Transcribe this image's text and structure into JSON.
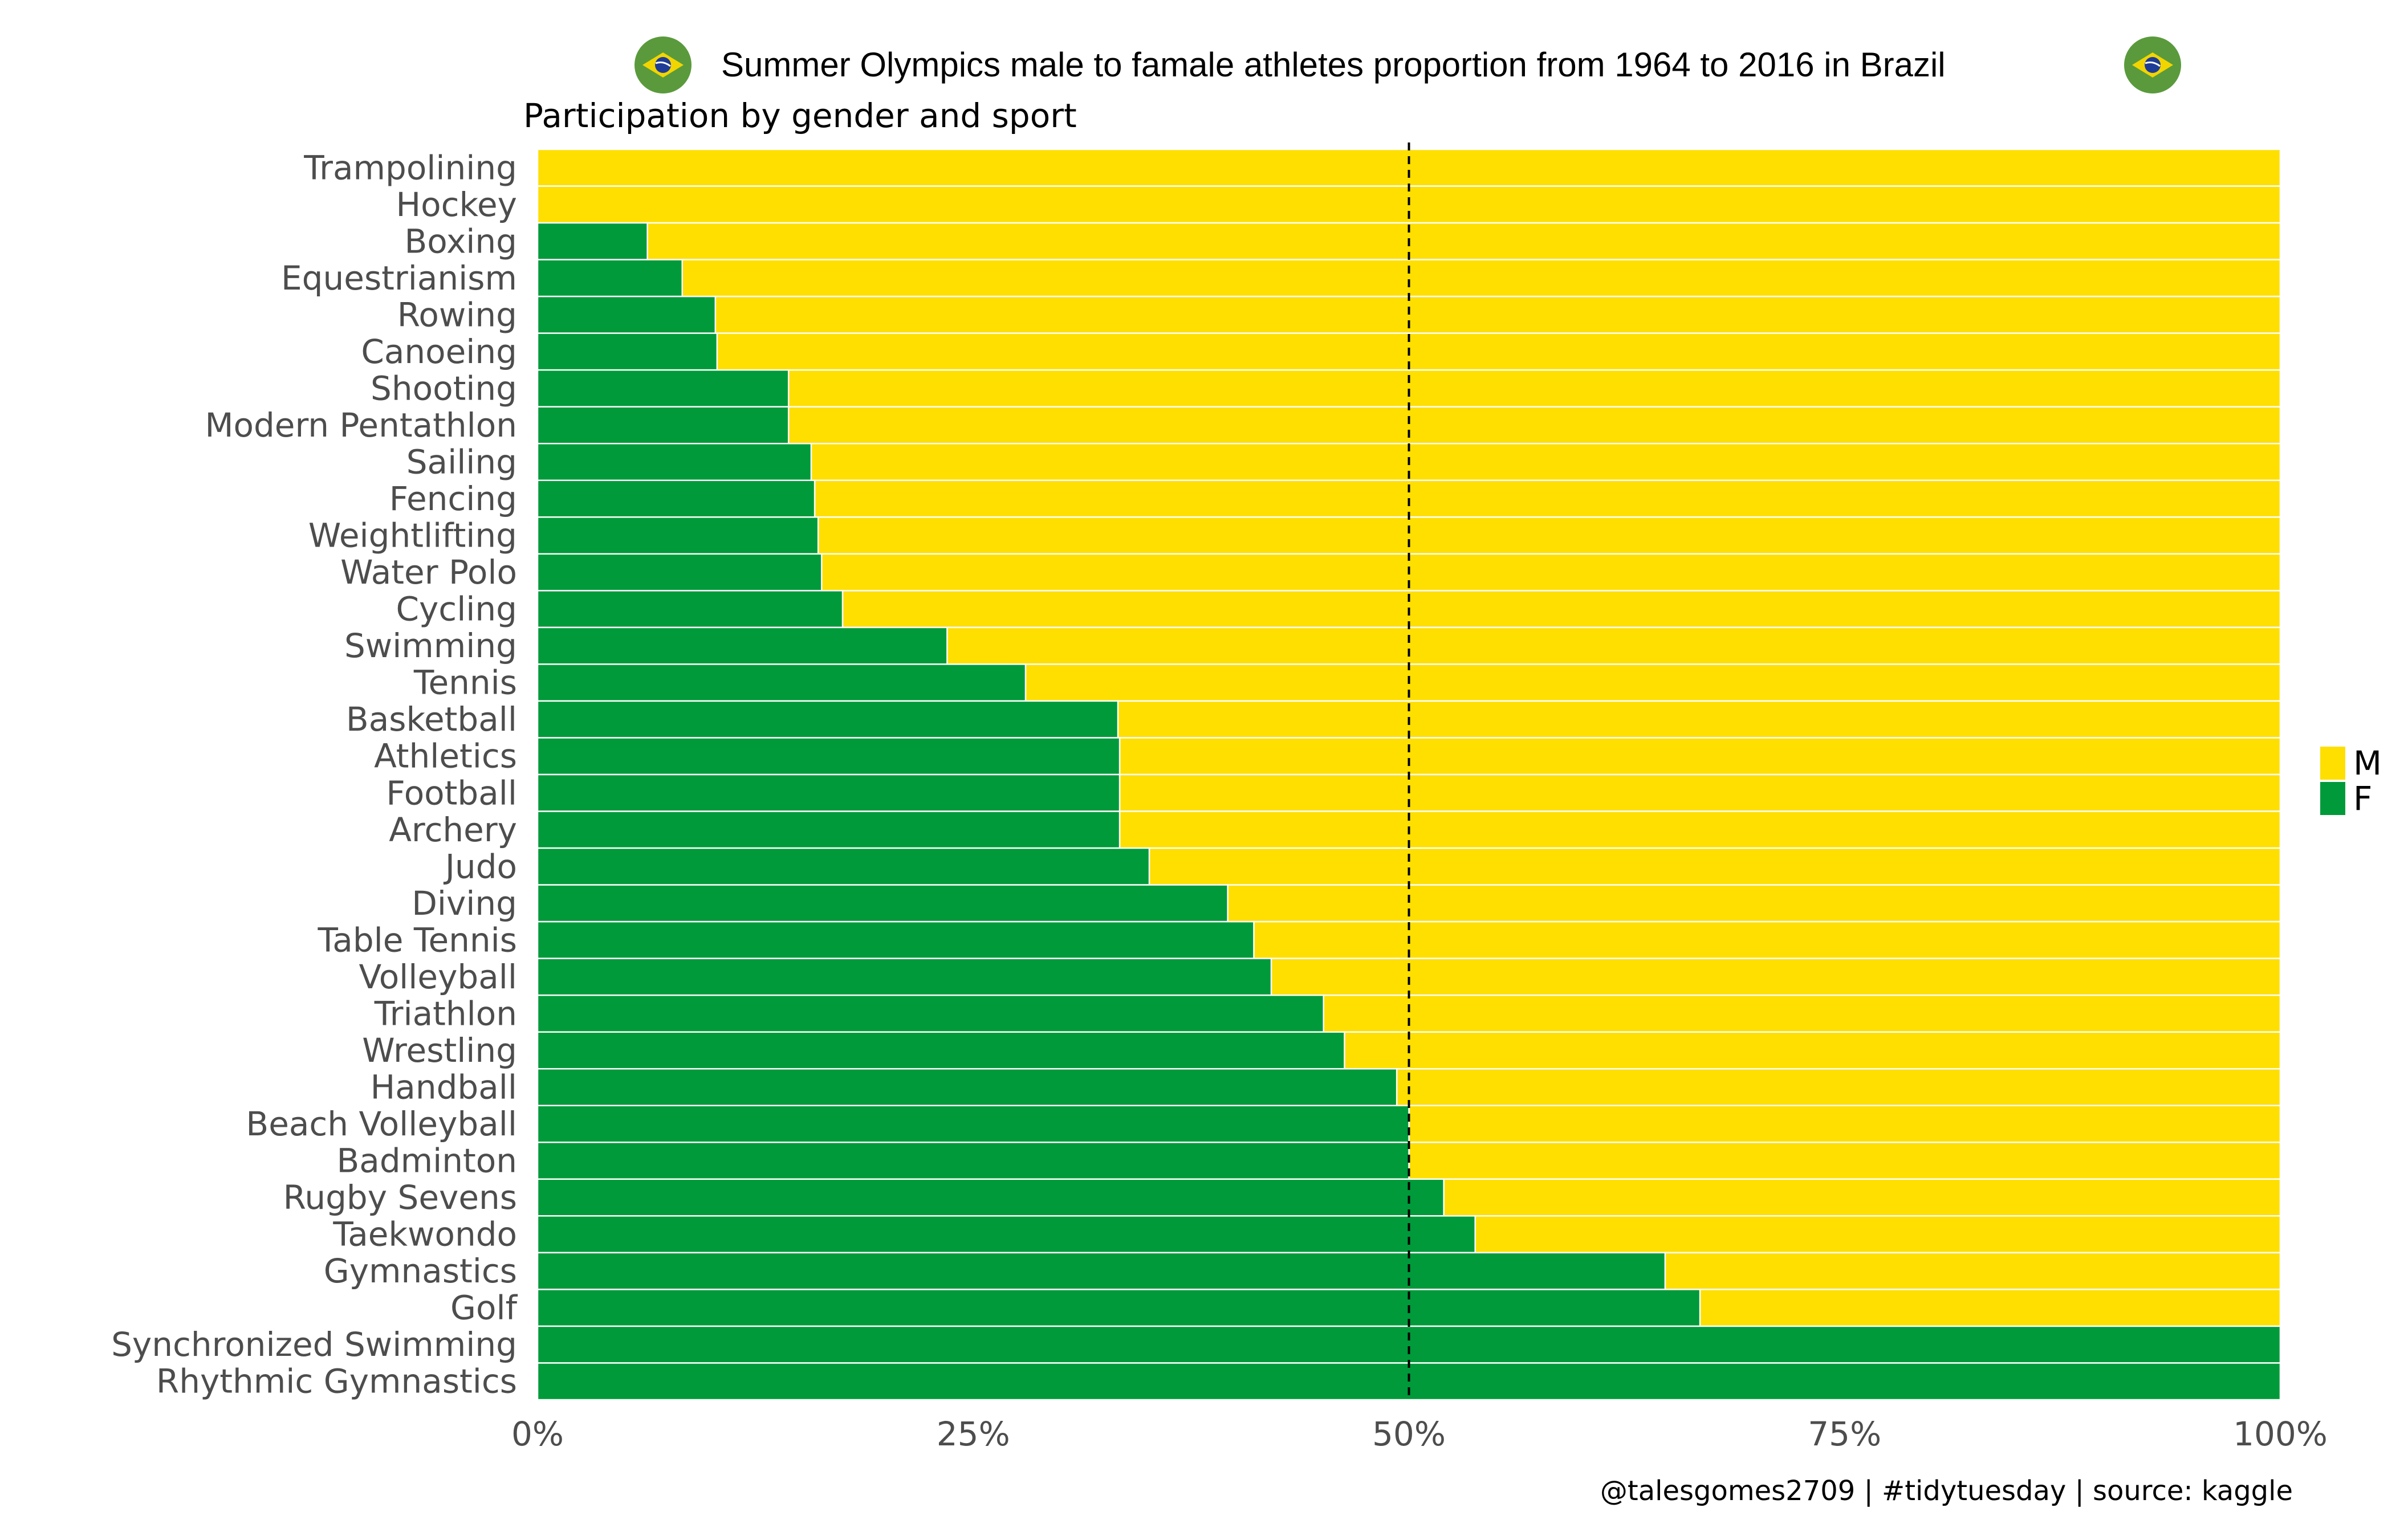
{
  "chart_data": {
    "type": "bar",
    "orientation": "horizontal",
    "stacked": "percent",
    "title": "Summer Olympics male to famale athletes proportion from 1964 to 2016 in Brazil",
    "subtitle": "Participation by gender and sport",
    "caption": "@talesgomes2709 | #tidytuesday | source: kaggle",
    "xlim": [
      0,
      1
    ],
    "x_ticks": [
      "0%",
      "25%",
      "50%",
      "75%",
      "100%"
    ],
    "reference_line": 0.5,
    "grid": false,
    "legend_position": "right",
    "categories": [
      "Trampolining",
      "Hockey",
      "Boxing",
      "Equestrianism",
      "Rowing",
      "Canoeing",
      "Shooting",
      "Modern Pentathlon",
      "Sailing",
      "Fencing",
      "Weightlifting",
      "Water Polo",
      "Cycling",
      "Swimming",
      "Tennis",
      "Basketball",
      "Athletics",
      "Football",
      "Archery",
      "Judo",
      "Diving",
      "Table Tennis",
      "Volleyball",
      "Triathlon",
      "Wrestling",
      "Handball",
      "Beach Volleyball",
      "Badminton",
      "Rugby Sevens",
      "Taekwondo",
      "Gymnastics",
      "Golf",
      "Synchronized Swimming",
      "Rhythmic Gymnastics"
    ],
    "series": [
      {
        "name": "F",
        "color": "#009a3a",
        "values": [
          0.0,
          0.0,
          0.063,
          0.083,
          0.102,
          0.103,
          0.144,
          0.144,
          0.157,
          0.159,
          0.161,
          0.163,
          0.175,
          0.235,
          0.28,
          0.333,
          0.334,
          0.334,
          0.334,
          0.351,
          0.396,
          0.411,
          0.421,
          0.451,
          0.463,
          0.493,
          0.5,
          0.5,
          0.52,
          0.538,
          0.647,
          0.667,
          1.0,
          1.0
        ]
      },
      {
        "name": "M",
        "color": "#fedf00",
        "values": [
          1.0,
          1.0,
          0.937,
          0.917,
          0.898,
          0.897,
          0.856,
          0.856,
          0.843,
          0.841,
          0.839,
          0.837,
          0.825,
          0.765,
          0.72,
          0.667,
          0.666,
          0.666,
          0.666,
          0.649,
          0.604,
          0.589,
          0.579,
          0.549,
          0.537,
          0.507,
          0.5,
          0.5,
          0.48,
          0.462,
          0.353,
          0.333,
          0.0,
          0.0
        ]
      }
    ],
    "legend": [
      {
        "label": "M",
        "color": "#fedf00"
      },
      {
        "label": "F",
        "color": "#009a3a"
      }
    ]
  },
  "icons": [
    "brazil-flag-icon",
    "brazil-flag-icon"
  ]
}
